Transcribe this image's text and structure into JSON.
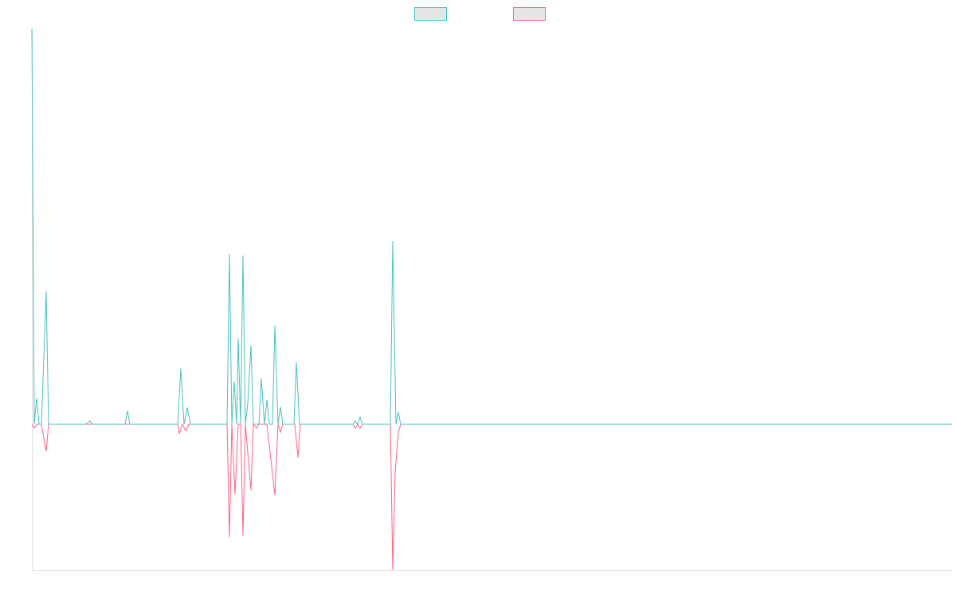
{
  "chart_data": {
    "type": "line",
    "legend": "top",
    "xlim": [
      0,
      1155
    ],
    "ylim": [
      -183,
      497
    ],
    "series": [
      {
        "color": "#4bc0c0",
        "x": [
          0,
          3,
          6,
          9,
          12,
          18,
          21,
          42,
          67,
          73,
          76,
          99,
          117,
          120,
          123,
          183,
          187,
          191,
          195,
          199,
          200,
          245,
          248,
          251,
          254,
          257,
          259,
          262,
          265,
          268,
          271,
          275,
          278,
          285,
          288,
          292,
          295,
          298,
          302,
          305,
          309,
          312,
          315,
          329,
          332,
          336,
          360,
          403,
          406,
          409,
          412,
          415,
          450,
          453,
          457,
          460,
          463,
          1155
        ],
        "values": [
          497,
          0,
          33,
          0,
          0,
          167,
          0,
          0,
          0,
          4,
          0,
          0,
          0,
          17,
          0,
          0,
          70,
          0,
          21,
          0,
          0,
          0,
          214,
          0,
          54,
          0,
          108,
          0,
          212,
          0,
          26,
          99,
          0,
          0,
          58,
          0,
          31,
          0,
          0,
          124,
          0,
          22,
          0,
          0,
          78,
          0,
          0,
          0,
          4,
          0,
          9,
          0,
          0,
          230,
          0,
          15,
          0,
          0
        ]
      },
      {
        "color": "#ff6384",
        "x": [
          0,
          3,
          6,
          12,
          18,
          21,
          183,
          185,
          189,
          193,
          197,
          245,
          248,
          251,
          255,
          259,
          262,
          265,
          268,
          275,
          278,
          282,
          285,
          295,
          305,
          309,
          312,
          315,
          330,
          334,
          337,
          403,
          406,
          409,
          412,
          415,
          450,
          453,
          456,
          460,
          463,
          1155
        ],
        "values": [
          0,
          -5,
          0,
          0,
          -34,
          0,
          0,
          -12,
          0,
          -8,
          0,
          0,
          -142,
          0,
          -88,
          0,
          0,
          -140,
          0,
          -83,
          0,
          -5,
          0,
          0,
          -89,
          0,
          -10,
          0,
          0,
          -42,
          0,
          0,
          -5,
          0,
          -5,
          0,
          0,
          -183,
          -60,
          -10,
          0,
          0
        ]
      }
    ]
  }
}
